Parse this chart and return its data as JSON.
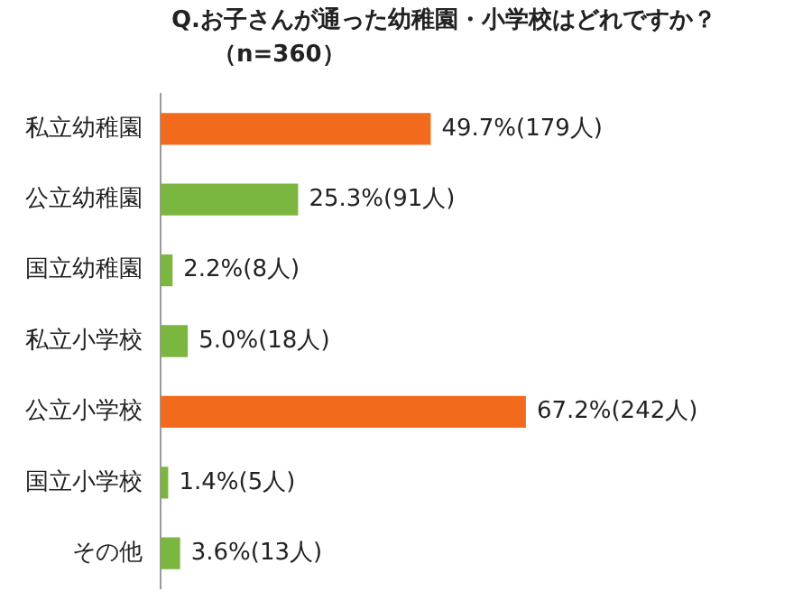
{
  "chart_data": {
    "type": "bar",
    "orientation": "horizontal",
    "title": "Q.お子さんが通った幼稚園・小学校はどれですか？",
    "subtitle": "（n=360）",
    "categories": [
      "私立幼稚園",
      "公立幼稚園",
      "国立幼稚園",
      "私立小学校",
      "公立小学校",
      "国立小学校",
      "その他"
    ],
    "values": [
      49.7,
      25.3,
      2.2,
      5.0,
      67.2,
      1.4,
      3.6
    ],
    "colors": [
      "#f26b1d",
      "#7bb640",
      "#7bb640",
      "#7bb640",
      "#f26b1d",
      "#7bb640",
      "#7bb640"
    ],
    "value_labels": [
      "49.7%(179人)",
      "25.3%(91人)",
      "2.2%(8人)",
      "5.0%(18人)",
      "67.2%(242人)",
      "1.4%(5人)",
      "3.6%(13人)"
    ],
    "legend": false
  }
}
